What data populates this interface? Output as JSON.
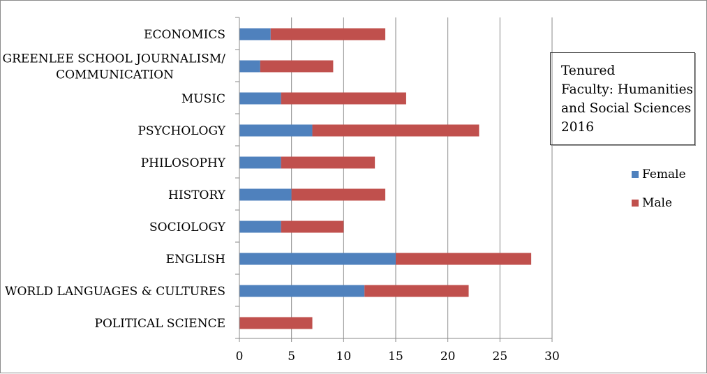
{
  "chart_data": {
    "type": "bar",
    "orientation": "horizontal",
    "stacked": true,
    "title": "Tenured Faculty: Humanities and Social Sciences 2016",
    "title_lines": [
      "Tenured",
      "Faculty: Humanities",
      "and Social Sciences",
      "2016"
    ],
    "categories": [
      "ECONOMICS",
      "GREENLEE SCHOOL JOURNALISM/ COMMUNICATION",
      "MUSIC",
      "PSYCHOLOGY",
      "PHILOSOPHY",
      "HISTORY",
      "SOCIOLOGY",
      "ENGLISH",
      "WORLD LANGUAGES & CULTURES",
      "POLITICAL SCIENCE"
    ],
    "category_label_lines": [
      [
        "ECONOMICS"
      ],
      [
        "GREENLEE SCHOOL JOURNALISM/",
        "COMMUNICATION"
      ],
      [
        "MUSIC"
      ],
      [
        "PSYCHOLOGY"
      ],
      [
        "PHILOSOPHY"
      ],
      [
        "HISTORY"
      ],
      [
        "SOCIOLOGY"
      ],
      [
        "ENGLISH"
      ],
      [
        "WORLD LANGUAGES & CULTURES"
      ],
      [
        "POLITICAL SCIENCE"
      ]
    ],
    "series": [
      {
        "name": "Female",
        "color": "#4f81bd",
        "values": [
          3,
          2,
          4,
          7,
          4,
          5,
          4,
          15,
          12,
          0
        ]
      },
      {
        "name": "Male",
        "color": "#c0504d",
        "values": [
          11,
          7,
          12,
          16,
          9,
          9,
          6,
          13,
          10,
          7
        ]
      }
    ],
    "xlim": [
      0,
      30
    ],
    "xticks": [
      0,
      5,
      10,
      15,
      20,
      25,
      30
    ],
    "xlabel": "",
    "ylabel": "",
    "grid": "vertical",
    "legend": "right"
  }
}
